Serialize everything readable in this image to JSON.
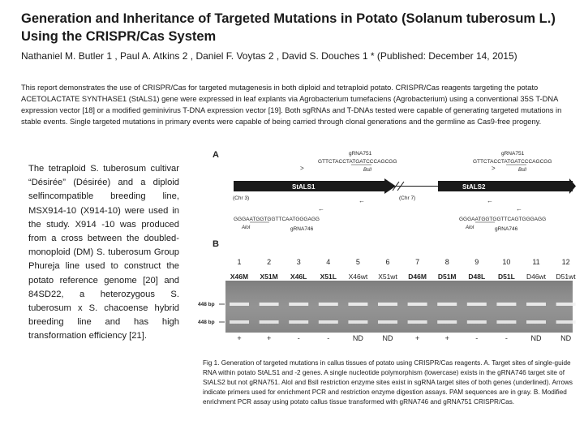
{
  "title": "Generation and Inheritance of Targeted Mutations in Potato (Solanum tuberosum L.) Using the CRISPR/Cas System",
  "authors": "Nathaniel M. Butler 1 , Paul A. Atkins 2 , Daniel F. Voytas 2 , David S. Douches 1 * (Published: December 14, 2015)",
  "abstract": "This report demonstrates the use of CRISPR/Cas for targeted mutagenesis in both diploid and tetraploid potato. CRISPR/Cas reagents targeting the potato ACETOLACTATE SYNTHASE1 (StALS1) gene were expressed in leaf explants via Agrobacterium tumefaciens (Agrobacterium) using a conventional 35S T-DNA expression vector [18] or a modified geminivirus T-DNA expression vector [19]. Both sgRNAs and T-DNAs tested were capable of generating targeted mutations in stable events. Single targeted mutations in primary events were capable of being carried through clonal generations and the germline as Cas9-free progeny.",
  "body_text": "The tetraploid S. tuberosum cultivar “Désirée” (Désirée) and a diploid selfincompatible breeding line, MSX914-10 (X914-10) were used in the study. X914 -10 was produced from a cross between the doubled-monoploid (DM) S. tuberosum Group Phureja line used to construct the potato reference genome [20] and 84SD22, a heterozygous S. tuberosum x S. chacoense hybrid breeding line and has high transformation efficiency [21].",
  "figure": {
    "panel_a": "A",
    "panel_b": "B",
    "seq_top_left": "GTTCTACCTATGATCCCAGCGG",
    "seq_top_right": "GTTCTACCTATGATCCCAGCGG",
    "label_g751_left": "gRNA751",
    "label_g751_right": "gRNA751",
    "bsli_left": "BslI",
    "bsli_right": "BslI",
    "gene1": "StALS1",
    "gene2": "StALS2",
    "chr3": "(Chr 3)",
    "chr7": "(Chr 7)",
    "seq_bot_left": "GGGAATGGTGGTTCAATGGGAGG",
    "seq_bot_right": "GGGAATGGTGGTTCAGTGGGAGG",
    "aloi_left": "AloI",
    "aloi_right": "AloI",
    "label_g746_left": "gRNA746",
    "label_g746_right": "gRNA746",
    "lane_numbers": [
      "1",
      "2",
      "3",
      "4",
      "5",
      "6",
      "7",
      "8",
      "9",
      "10",
      "11",
      "12"
    ],
    "lane_labels": [
      "X46M",
      "X51M",
      "X46L",
      "X51L",
      "X46wt",
      "X51wt",
      "D46M",
      "D51M",
      "D48L",
      "D51L",
      "D46wt",
      "D51wt"
    ],
    "marker_448_top": "448 bp",
    "marker_448_bot": "448 bp",
    "signs": [
      "+",
      "+",
      "-",
      "-",
      "ND",
      "ND",
      "+",
      "+",
      "-",
      "-",
      "ND",
      "ND"
    ]
  },
  "caption": "Fig 1. Generation of targeted mutations in callus tissues of potato using CRISPR/Cas reagents. A. Target sites of single-guide RNA within potato StALS1 and -2 genes. A single nucleotide polymorphism (lowercase) exists in the gRNA746 target site of StALS2 but not gRNA751. AloI and BslI restriction enzyme sites exist in sgRNA target sites of both genes (underlined). Arrows indicate primers used for enrichment PCR and restriction enzyme digestion assays. PAM sequences are in gray. B. Modified enrichment PCR assay using potato callus tissue transformed with gRNA746 and gRNA751 CRISPR/Cas."
}
